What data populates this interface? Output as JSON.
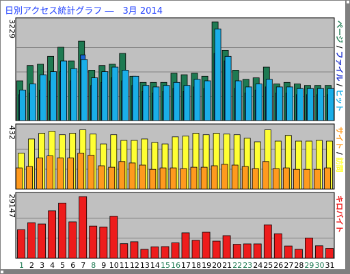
{
  "title": "日別アクセス統計グラフ ―　3月 2014",
  "colors": {
    "panel_bg": "#c0c0c0",
    "grid": "#808080",
    "page": "#1e7a52",
    "file": "#1565d8",
    "hit": "#1aaee8",
    "visit": "#ffff33",
    "site": "#ff9a1e",
    "kbyte": "#ee1c1c",
    "label_blue": "#1a2ecc",
    "label_green": "#1e7a52",
    "label_orange": "#ff9a1e",
    "label_red": "#ee1c1c"
  },
  "chart_data": {
    "type": "bar",
    "days": [
      1,
      2,
      3,
      4,
      5,
      6,
      7,
      8,
      9,
      10,
      11,
      12,
      13,
      14,
      15,
      16,
      17,
      18,
      19,
      20,
      21,
      22,
      23,
      24,
      25,
      26,
      27,
      28,
      29,
      30,
      31
    ],
    "weekend_days": [
      1,
      8,
      15,
      16,
      22,
      23,
      29,
      30
    ],
    "panels": [
      {
        "id": "hits",
        "ymax_label": "3229",
        "ymax": 3229,
        "right_label": "ページ / ファイル / ヒット",
        "series": [
          {
            "name": "ヒット",
            "color_key": "hit",
            "values": [
              1000,
              1200,
              1500,
              1600,
              1950,
              1700,
              2000,
              1400,
              1600,
              1750,
              1650,
              1450,
              1150,
              1100,
              1150,
              1250,
              1150,
              1350,
              1300,
              3000,
              2100,
              1300,
              1100,
              1200,
              1350,
              1100,
              1100,
              1050,
              1050,
              1050,
              1050
            ]
          },
          {
            "name": "ファイル",
            "color_key": "file",
            "values": [
              850,
              900,
              1000,
              1300,
              1600,
              1300,
              2150,
              1150,
              1250,
              1400,
              1300,
              1150,
              950,
              900,
              950,
              1050,
              950,
              1100,
              1050,
              2200,
              1950,
              1050,
              900,
              1000,
              1100,
              900,
              900,
              850,
              850,
              850,
              850
            ]
          },
          {
            "name": "ページ",
            "color_key": "page",
            "values": [
              1300,
              1800,
              1850,
              2100,
              2400,
              1950,
              2600,
              1650,
              1800,
              1850,
              2200,
              1450,
              1250,
              1250,
              1250,
              1550,
              1500,
              1550,
              1450,
              3229,
              2300,
              1650,
              1350,
              1400,
              1750,
              1200,
              1250,
              1200,
              1150,
              1150,
              1150
            ]
          }
        ]
      },
      {
        "id": "visits",
        "ymax_label": "432",
        "ymax": 432,
        "right_label": "サイト / 訪問",
        "series": [
          {
            "name": "訪問",
            "color_key": "visit",
            "values": [
              255,
              355,
              395,
              410,
              385,
              395,
              420,
              390,
              320,
              385,
              345,
              345,
              355,
              330,
              320,
              370,
              375,
              395,
              385,
              395,
              390,
              385,
              360,
              335,
              420,
              340,
              380,
              340,
              340,
              345,
              340
            ]
          },
          {
            "name": "サイト",
            "color_key": "site",
            "values": [
              150,
              160,
              220,
              235,
              220,
              220,
              255,
              240,
              165,
              155,
              195,
              185,
              170,
              140,
              150,
              150,
              145,
              155,
              155,
              165,
              175,
              170,
              160,
              145,
              195,
              145,
              150,
              140,
              140,
              140,
              150
            ]
          }
        ]
      },
      {
        "id": "kbytes",
        "ymax_label": "29147",
        "ymax": 29147,
        "right_label": "キロバイト",
        "series": [
          {
            "name": "キロバイト",
            "color_key": "kbyte",
            "values": [
              13500,
              16800,
              16200,
              22400,
              26100,
              17200,
              29147,
              15200,
              14800,
              19900,
              6900,
              7800,
              4200,
              5400,
              5500,
              7300,
              12000,
              8500,
              12300,
              8100,
              10700,
              6600,
              6800,
              6800,
              15800,
              11600,
              5800,
              4200,
              9600,
              5900,
              4700
            ]
          }
        ]
      }
    ]
  }
}
